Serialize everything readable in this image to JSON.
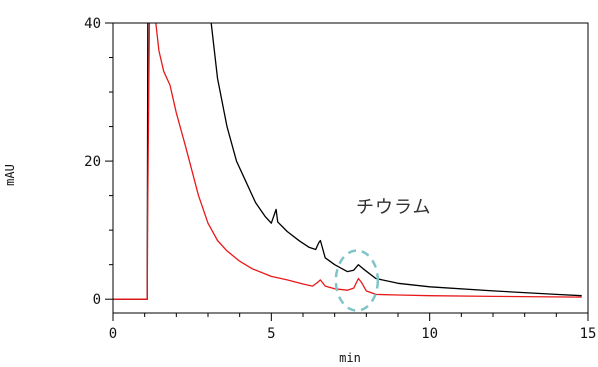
{
  "chart_data": {
    "type": "line",
    "xlabel": "min",
    "ylabel": "mAU",
    "xlim": [
      0,
      15
    ],
    "ylim": [
      -2,
      40
    ],
    "xticks": [
      0,
      5,
      10,
      15
    ],
    "yticks": [
      0,
      20,
      40
    ],
    "annotation": "チウラム",
    "highlight": {
      "center_x": 7.7,
      "center_y": 2.7
    },
    "colors": {
      "black": "#000000",
      "red": "#e8191a",
      "highlight": "#7fc4c8"
    },
    "series": [
      {
        "color": "#000000",
        "points": [
          [
            0,
            0
          ],
          [
            1,
            0
          ],
          [
            1.08,
            0
          ],
          [
            1.1,
            40
          ],
          [
            1.12,
            42
          ],
          [
            3.1,
            40
          ],
          [
            3.3,
            32
          ],
          [
            3.6,
            25
          ],
          [
            3.9,
            20
          ],
          [
            4.2,
            17
          ],
          [
            4.5,
            14
          ],
          [
            4.8,
            12
          ],
          [
            5.0,
            11
          ],
          [
            5.15,
            13
          ],
          [
            5.2,
            11.2
          ],
          [
            5.5,
            9.8
          ],
          [
            5.9,
            8.4
          ],
          [
            6.2,
            7.5
          ],
          [
            6.4,
            7.2
          ],
          [
            6.5,
            8.2
          ],
          [
            6.55,
            8.5
          ],
          [
            6.7,
            6.0
          ],
          [
            7.0,
            5.0
          ],
          [
            7.4,
            4.0
          ],
          [
            7.6,
            4.2
          ],
          [
            7.75,
            5.0
          ],
          [
            7.9,
            4.4
          ],
          [
            8.3,
            3.0
          ],
          [
            9.0,
            2.3
          ],
          [
            10,
            1.8
          ],
          [
            12,
            1.2
          ],
          [
            14,
            0.7
          ],
          [
            14.8,
            0.5
          ]
        ]
      },
      {
        "color": "#e8191a",
        "points": [
          [
            0,
            0
          ],
          [
            1,
            0
          ],
          [
            1.08,
            0
          ],
          [
            1.1,
            15
          ],
          [
            1.15,
            40
          ],
          [
            1.2,
            42
          ],
          [
            1.35,
            40
          ],
          [
            1.45,
            36
          ],
          [
            1.6,
            33
          ],
          [
            1.8,
            31
          ],
          [
            2.0,
            27
          ],
          [
            2.3,
            22
          ],
          [
            2.7,
            15
          ],
          [
            3.0,
            11
          ],
          [
            3.3,
            8.5
          ],
          [
            3.6,
            7.0
          ],
          [
            4.0,
            5.5
          ],
          [
            4.4,
            4.4
          ],
          [
            5.0,
            3.3
          ],
          [
            5.5,
            2.8
          ],
          [
            6.0,
            2.2
          ],
          [
            6.3,
            1.9
          ],
          [
            6.45,
            2.4
          ],
          [
            6.55,
            2.8
          ],
          [
            6.7,
            1.9
          ],
          [
            7.0,
            1.5
          ],
          [
            7.4,
            1.3
          ],
          [
            7.6,
            1.6
          ],
          [
            7.75,
            3.0
          ],
          [
            7.85,
            2.4
          ],
          [
            8.0,
            1.2
          ],
          [
            8.3,
            0.7
          ],
          [
            9.0,
            0.6
          ],
          [
            10,
            0.5
          ],
          [
            12,
            0.4
          ],
          [
            14.8,
            0.3
          ]
        ]
      }
    ]
  }
}
